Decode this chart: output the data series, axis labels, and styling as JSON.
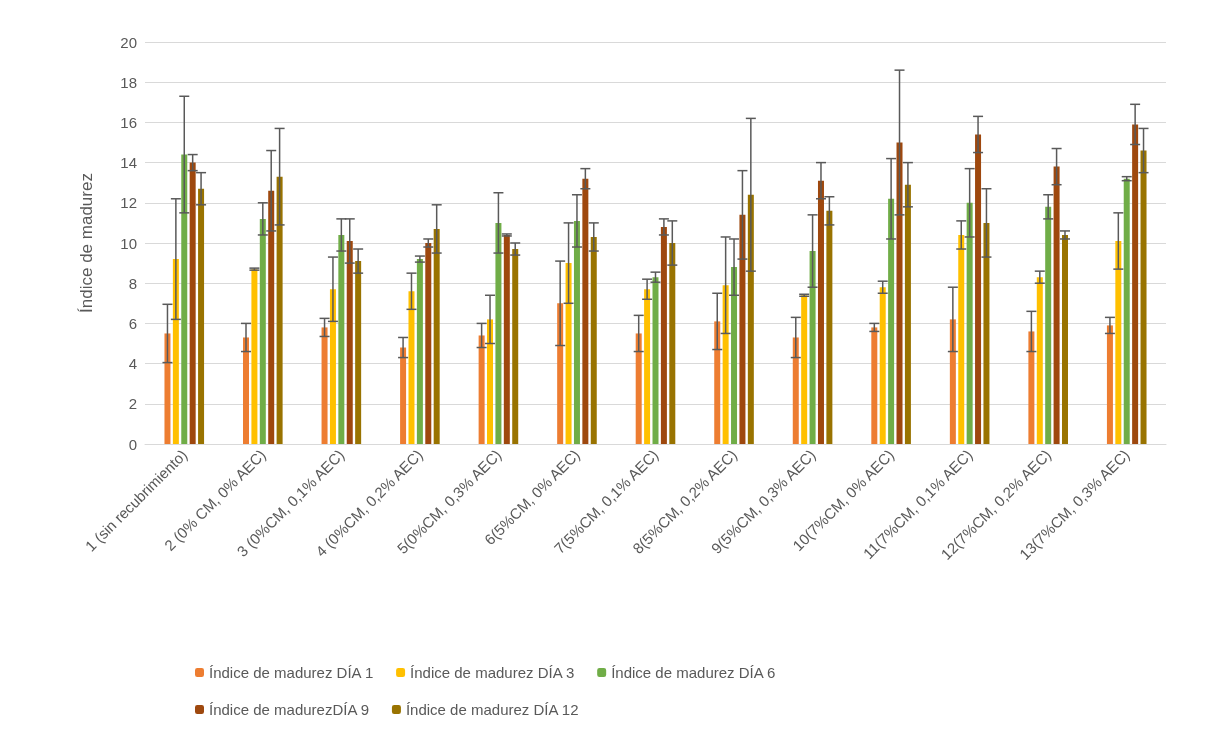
{
  "chart_data": {
    "type": "bar",
    "ylabel": "Índice de madurez",
    "categories": [
      "1 (sin recubrimiento)",
      "2 (0% CM, 0% AEC)",
      "3 (0%CM, 0,1% AEC)",
      "4 (0%CM, 0,2% AEC)",
      "5(0%CM, 0,3% AEC)",
      "6(5%CM, 0% AEC)",
      "7(5%CM, 0,1% AEC)",
      "8(5%CM, 0,2% AEC)",
      "9(5%CM, 0,3% AEC)",
      "10(7%CM, 0% AEC)",
      "11(7%CM, 0,1% AEC)",
      "12(7%CM, 0,2% AEC)",
      "13(7%CM, 0,3% AEC)"
    ],
    "series": [
      {
        "name": "Índice de madurez DÍA 1",
        "color": "#ed7d31",
        "values": [
          5.5,
          5.3,
          5.8,
          4.8,
          5.4,
          7.0,
          5.5,
          6.1,
          5.3,
          5.8,
          6.2,
          5.6,
          5.9
        ],
        "errors": [
          1.45,
          0.7,
          0.45,
          0.5,
          0.6,
          2.1,
          0.9,
          1.4,
          1.0,
          0.2,
          1.6,
          1.0,
          0.4
        ]
      },
      {
        "name": "Índice de madurez DÍA 3",
        "color": "#ffc000",
        "values": [
          9.2,
          8.7,
          7.7,
          7.6,
          6.2,
          9.0,
          7.7,
          7.9,
          7.4,
          7.8,
          10.4,
          8.3,
          10.1
        ],
        "errors": [
          3.0,
          0.05,
          1.6,
          0.9,
          1.2,
          2.0,
          0.5,
          2.4,
          0.05,
          0.3,
          0.7,
          0.3,
          1.4
        ]
      },
      {
        "name": "Índice de madurez DÍA 6",
        "color": "#70ad47",
        "values": [
          14.4,
          11.2,
          10.4,
          9.2,
          11.0,
          11.1,
          8.3,
          8.8,
          9.6,
          12.2,
          12.0,
          11.8,
          13.2
        ],
        "errors": [
          2.9,
          0.8,
          0.8,
          0.15,
          1.5,
          1.3,
          0.25,
          1.4,
          1.8,
          2.0,
          1.7,
          0.6,
          0.1
        ]
      },
      {
        "name": "Índice de madurezDÍA 9",
        "color": "#9e480e",
        "values": [
          14.0,
          12.6,
          10.1,
          10.0,
          10.4,
          13.2,
          10.8,
          11.4,
          13.1,
          15.0,
          15.4,
          13.8,
          15.9
        ],
        "errors": [
          0.4,
          2.0,
          1.1,
          0.2,
          0.05,
          0.5,
          0.4,
          2.2,
          0.9,
          3.6,
          0.9,
          0.9,
          1.0
        ]
      },
      {
        "name": "Índice de madurez DÍA 12",
        "color": "#997300",
        "values": [
          12.7,
          13.3,
          9.1,
          10.7,
          9.7,
          10.3,
          10.0,
          12.4,
          11.6,
          12.9,
          11.0,
          10.4,
          14.6
        ],
        "errors": [
          0.8,
          2.4,
          0.6,
          1.2,
          0.3,
          0.7,
          1.1,
          3.8,
          0.7,
          1.1,
          1.7,
          0.2,
          1.1
        ]
      }
    ],
    "ylim": [
      0,
      20
    ],
    "yticks": [
      0,
      2,
      4,
      6,
      8,
      10,
      12,
      14,
      16,
      18,
      20
    ],
    "grid": "y",
    "legend": "bottom"
  }
}
